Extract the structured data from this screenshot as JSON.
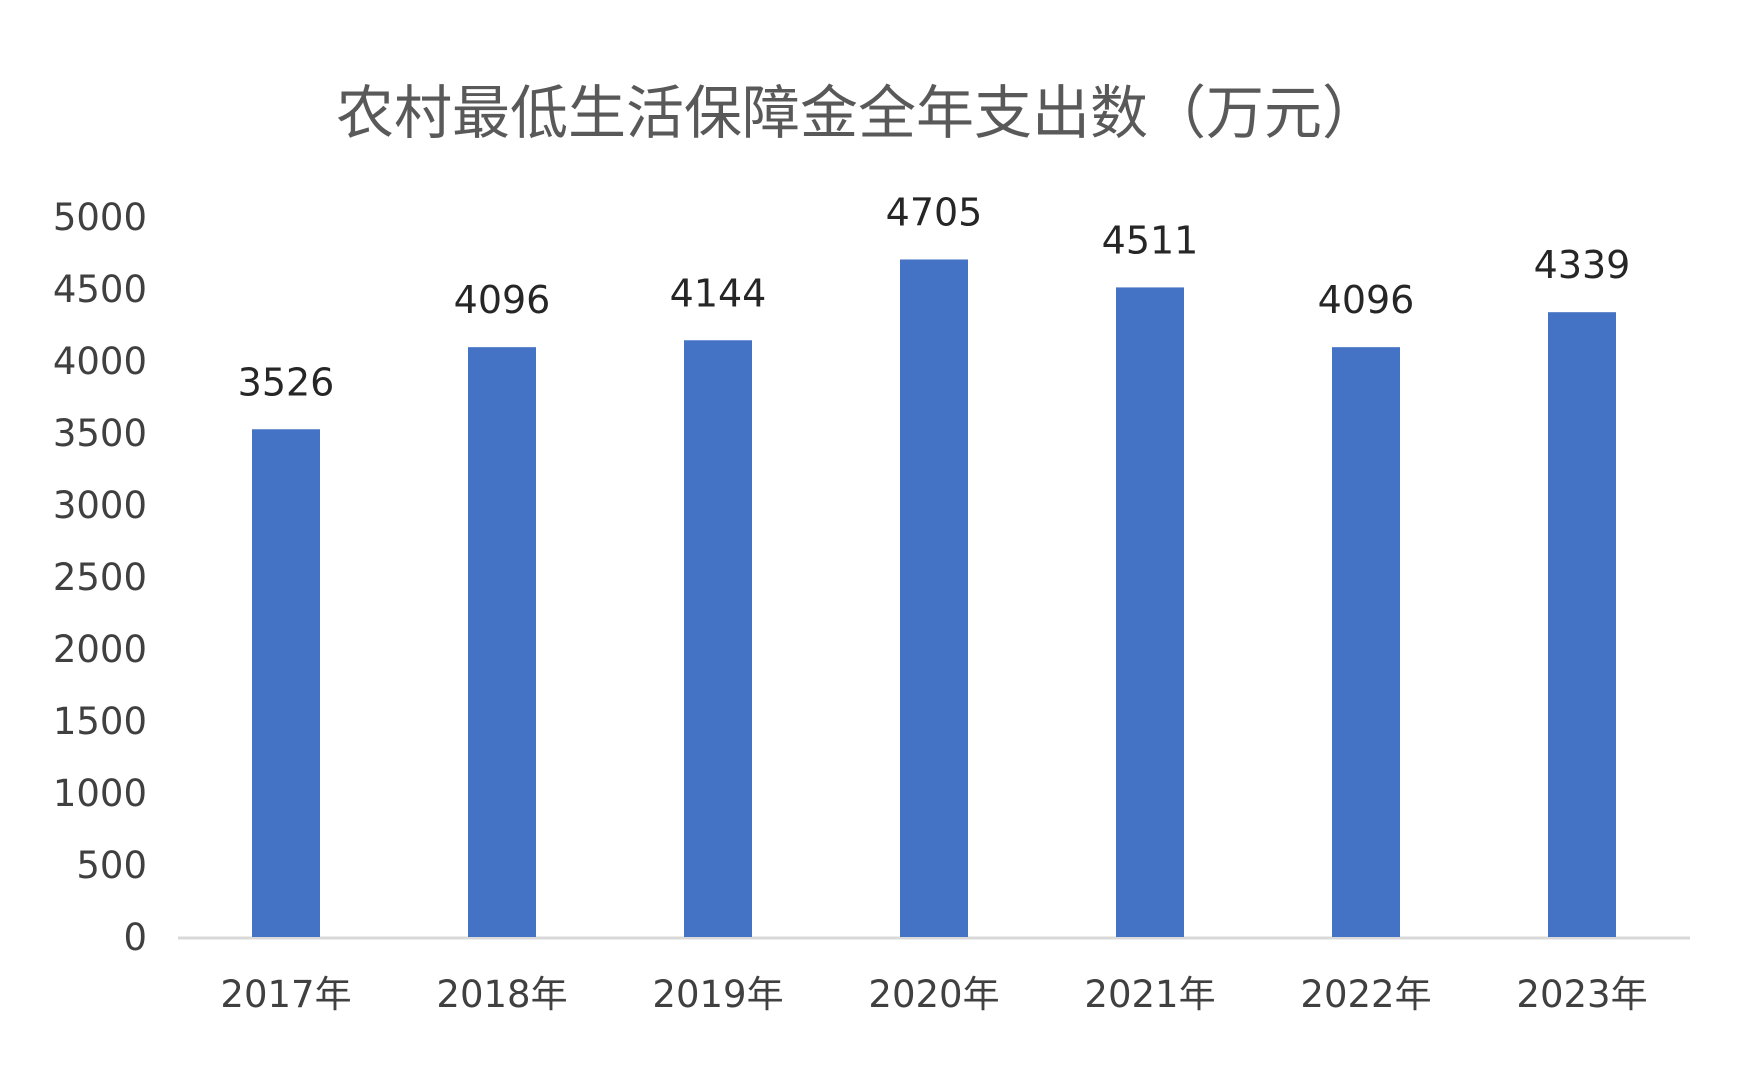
{
  "chart_data": {
    "type": "bar",
    "title": "农村最低生活保障金全年支出数（万元）",
    "xlabel": "",
    "ylabel": "",
    "categories": [
      "2017年",
      "2018年",
      "2019年",
      "2020年",
      "2021年",
      "2022年",
      "2023年"
    ],
    "values": [
      3526,
      4096,
      4144,
      4705,
      4511,
      4096,
      4339
    ],
    "data_labels": [
      "3526",
      "4096",
      "4144",
      "4705",
      "4511",
      "4096",
      "4339"
    ],
    "ylim": [
      0,
      5000
    ],
    "yticks": [
      0,
      500,
      1000,
      1500,
      2000,
      2500,
      3000,
      3500,
      4000,
      4500,
      5000
    ],
    "ytick_labels": [
      "0",
      "500",
      "1000",
      "1500",
      "2000",
      "2500",
      "3000",
      "3500",
      "4000",
      "4500",
      "5000"
    ],
    "grid": false,
    "legend": "none",
    "bar_color": "#4472C4",
    "axis_color": "#D9D9D9"
  }
}
